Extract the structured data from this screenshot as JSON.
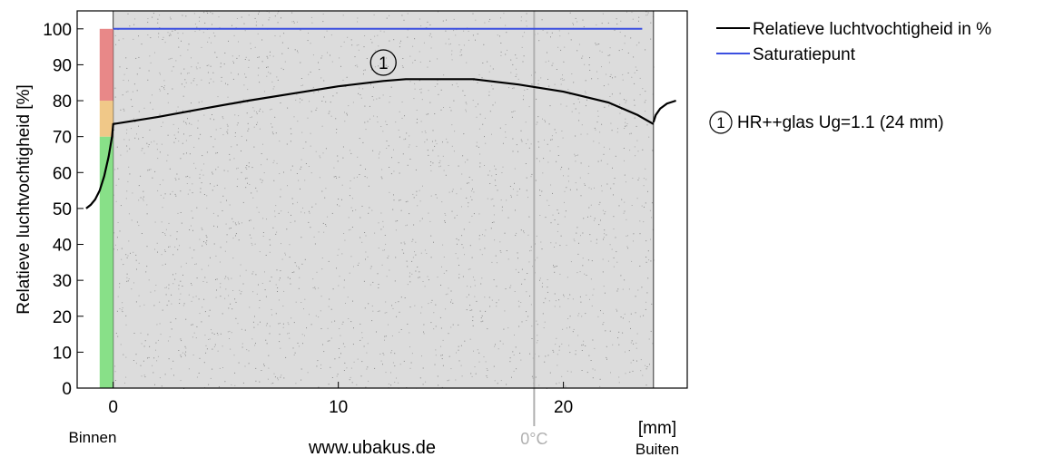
{
  "chart_data": {
    "type": "line",
    "title": "",
    "ylabel": "Relatieve luchtvochtigheid [%]",
    "xlabel": "[mm]",
    "xlim": [
      -1.6,
      25.5
    ],
    "ylim": [
      0,
      105
    ],
    "x_ticks": [
      0,
      10,
      20
    ],
    "x_tick_labels": [
      "0",
      "10",
      "20"
    ],
    "y_ticks": [
      0,
      10,
      20,
      30,
      40,
      50,
      60,
      70,
      80,
      90,
      100
    ],
    "y_tick_labels": [
      "0",
      "10",
      "20",
      "30",
      "40",
      "50",
      "60",
      "70",
      "80",
      "90",
      "100"
    ],
    "layer": {
      "x_start": 0,
      "x_end": 24,
      "number": "1",
      "name": "HR++glas Ug=1.1 (24 mm)",
      "fill_color": "#dcdcdc",
      "number_label_x": 12
    },
    "colorbar": {
      "x_range": [
        -0.6,
        0
      ],
      "zones": [
        {
          "from": 0,
          "to": 70,
          "color": "#88e088"
        },
        {
          "from": 70,
          "to": 80,
          "color": "#f0c888"
        },
        {
          "from": 80,
          "to": 100,
          "color": "#e88888"
        }
      ]
    },
    "zero_degree_line": {
      "x": 18.7,
      "label": "0°C",
      "color": "#b0b0b0"
    },
    "series": [
      {
        "name": "Relatieve luchtvochtigheid in %",
        "color": "#000000",
        "points": [
          [
            -1.2,
            50
          ],
          [
            -1.0,
            51
          ],
          [
            -0.8,
            52.5
          ],
          [
            -0.6,
            55
          ],
          [
            -0.4,
            59
          ],
          [
            -0.2,
            64.5
          ],
          [
            -0.05,
            70
          ],
          [
            0,
            73.5
          ],
          [
            2,
            75.5
          ],
          [
            4,
            77.8
          ],
          [
            6,
            80
          ],
          [
            8,
            82
          ],
          [
            10,
            84
          ],
          [
            12,
            85.5
          ],
          [
            13,
            86
          ],
          [
            16,
            86
          ],
          [
            18,
            84.5
          ],
          [
            20,
            82.5
          ],
          [
            22,
            79.5
          ],
          [
            23.3,
            76
          ],
          [
            24,
            73.5
          ]
        ]
      },
      {
        "name": "",
        "color": "#000000",
        "points": [
          [
            24,
            74
          ],
          [
            24.1,
            76
          ],
          [
            24.3,
            77.8
          ],
          [
            24.6,
            79.2
          ],
          [
            25,
            80
          ]
        ]
      },
      {
        "name": "Saturatiepunt",
        "color": "#3b4fe0",
        "points": [
          [
            0,
            100
          ],
          [
            23.5,
            100
          ]
        ]
      }
    ],
    "legend": {
      "placement": "right",
      "entries": [
        {
          "label": "Relatieve luchtvochtigheid in %",
          "color": "#000000"
        },
        {
          "label": "Saturatiepunt",
          "color": "#3b4fe0"
        }
      ]
    },
    "annotations": {
      "inside_label": "Binnen",
      "outside_label": "Buiten",
      "website": "www.ubakus.de"
    }
  }
}
